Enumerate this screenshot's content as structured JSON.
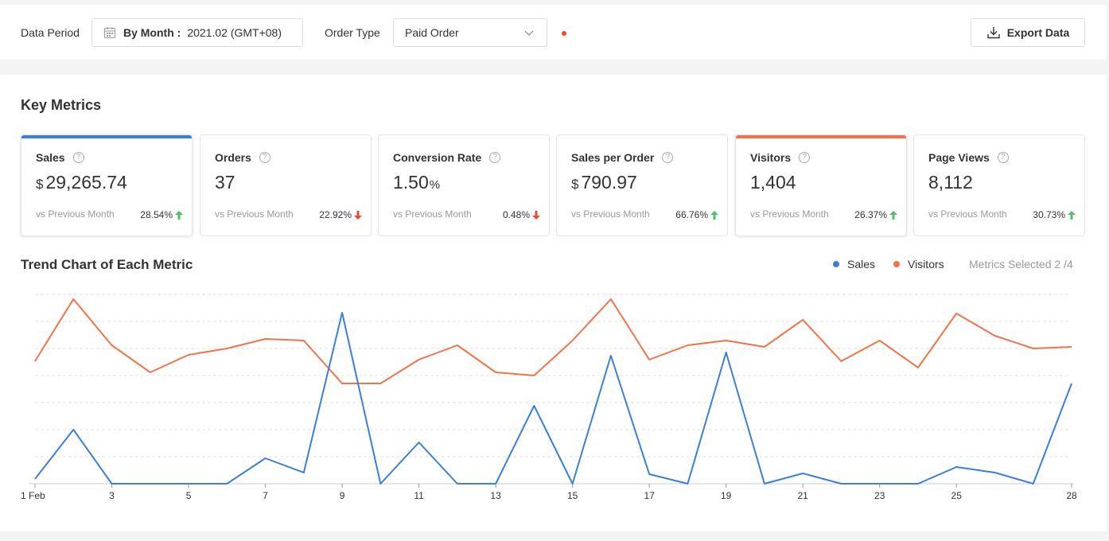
{
  "filters": {
    "period_label": "Data Period",
    "period_mode": "By Month :",
    "period_value": "2021.02 (GMT+08)",
    "order_type_label": "Order Type",
    "order_type_value": "Paid Order",
    "export_label": "Export Data"
  },
  "key_metrics": {
    "title": "Key Metrics",
    "cards": [
      {
        "name": "Sales",
        "prefix": "$",
        "value": "29,265.74",
        "suffix": "",
        "vs": "vs Previous Month",
        "change": "28.54%",
        "direction": "up",
        "selected": true,
        "color": "#3a7fd9"
      },
      {
        "name": "Orders",
        "prefix": "",
        "value": "37",
        "suffix": "",
        "vs": "vs Previous Month",
        "change": "22.92%",
        "direction": "down",
        "selected": false,
        "color": ""
      },
      {
        "name": "Conversion Rate",
        "prefix": "",
        "value": "1.50",
        "suffix": "%",
        "vs": "vs Previous Month",
        "change": "0.48%",
        "direction": "down",
        "selected": false,
        "color": ""
      },
      {
        "name": "Sales per Order",
        "prefix": "$",
        "value": "790.97",
        "suffix": "",
        "vs": "vs Previous Month",
        "change": "66.76%",
        "direction": "up",
        "selected": false,
        "color": ""
      },
      {
        "name": "Visitors",
        "prefix": "",
        "value": "1,404",
        "suffix": "",
        "vs": "vs Previous Month",
        "change": "26.37%",
        "direction": "up",
        "selected": true,
        "color": "#f0744a"
      },
      {
        "name": "Page Views",
        "prefix": "",
        "value": "8,112",
        "suffix": "",
        "vs": "vs Previous Month",
        "change": "30.73%",
        "direction": "up",
        "selected": false,
        "color": ""
      }
    ]
  },
  "trend": {
    "title": "Trend Chart of Each Metric",
    "legend": [
      {
        "name": "Sales",
        "color": "#3a7fd9"
      },
      {
        "name": "Visitors",
        "color": "#f0744a"
      }
    ],
    "metrics_selected": "Metrics Selected 2 /4"
  },
  "colors": {
    "up": "#4cc06a",
    "down": "#ee4d2d",
    "accent_red": "#ee4d2d"
  },
  "chart_data": {
    "type": "line",
    "x": [
      1,
      2,
      3,
      4,
      5,
      6,
      7,
      8,
      9,
      10,
      11,
      12,
      13,
      14,
      15,
      16,
      17,
      18,
      19,
      20,
      21,
      22,
      23,
      24,
      25,
      26,
      27,
      28
    ],
    "tick_labels": [
      "1 Feb",
      "3",
      "5",
      "7",
      "9",
      "11",
      "13",
      "15",
      "17",
      "19",
      "21",
      "23",
      "25",
      "28"
    ],
    "tick_days": [
      1,
      3,
      5,
      7,
      9,
      11,
      13,
      15,
      17,
      19,
      21,
      23,
      25,
      28
    ],
    "ylim": [
      0,
      240
    ],
    "grid": true,
    "legend_position": "top-right",
    "series": [
      {
        "name": "Sales",
        "color": "#3a7fd9",
        "values": [
          6,
          68,
          0,
          0,
          0,
          0,
          32,
          14,
          215,
          0,
          52,
          0,
          0,
          98,
          0,
          161,
          12,
          0,
          165,
          0,
          13,
          0,
          0,
          0,
          21,
          14,
          0,
          126
        ]
      },
      {
        "name": "Visitors",
        "color": "#f0744a",
        "values": [
          154,
          232,
          174,
          140,
          162,
          170,
          182,
          180,
          126,
          126,
          156,
          174,
          140,
          136,
          180,
          232,
          156,
          174,
          180,
          172,
          206,
          154,
          180,
          146,
          214,
          186,
          170,
          172
        ]
      }
    ]
  }
}
